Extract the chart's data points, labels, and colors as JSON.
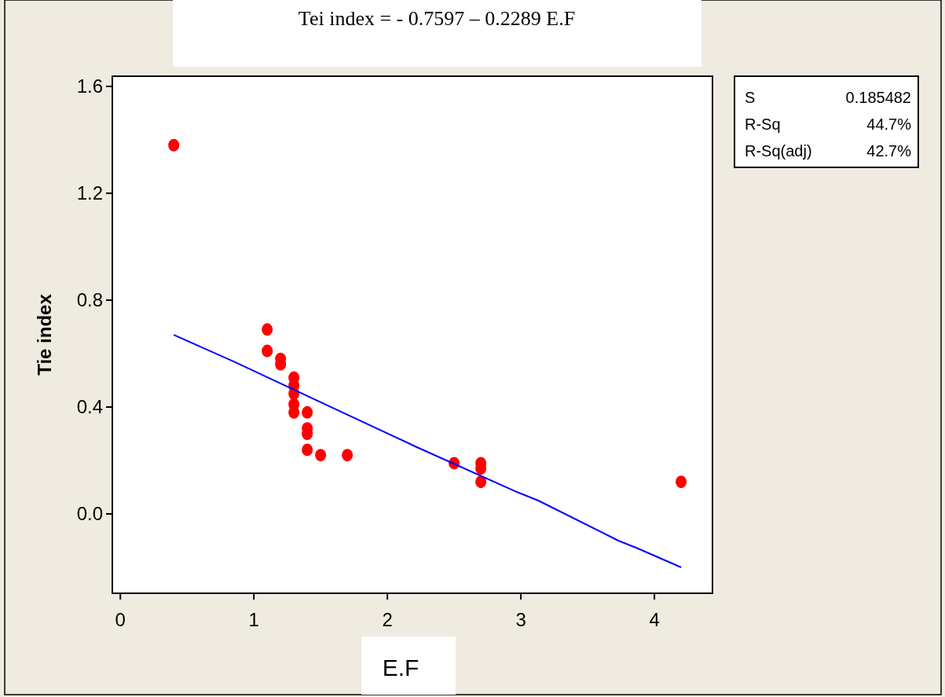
{
  "chart_data": {
    "type": "scatter",
    "title": "Tei index = - 0.7597 – 0.2289 E.F",
    "xlabel": "E.F",
    "ylabel": "Tie index",
    "xlim": [
      -0.06,
      4.435
    ],
    "ylim": [
      -0.297,
      1.638
    ],
    "xticks": [
      0,
      1,
      2,
      3,
      4
    ],
    "yticks": [
      {
        "value": 0,
        "label": "0.0"
      },
      0.4,
      0.8,
      1.2,
      1.6
    ],
    "grid": false,
    "series": [
      {
        "type": "scatter",
        "color": "#ff0000",
        "marker": "circle",
        "x": [
          0.4,
          1.1,
          1.1,
          1.2,
          1.2,
          1.3,
          1.3,
          1.3,
          1.3,
          1.3,
          1.4,
          1.4,
          1.4,
          1.4,
          1.5,
          1.7,
          2.5,
          2.7,
          2.7,
          2.7,
          4.2
        ],
        "values": [
          1.38,
          0.69,
          0.61,
          0.58,
          0.56,
          0.51,
          0.48,
          0.45,
          0.41,
          0.38,
          0.38,
          0.32,
          0.3,
          0.24,
          0.22,
          0.22,
          0.19,
          0.19,
          0.17,
          0.12,
          0.12
        ]
      },
      {
        "type": "line",
        "color": "#0000ff",
        "marker": "none",
        "line_style": "solid",
        "x": [
          0.4,
          0.85,
          1.62,
          2.22,
          2.98,
          3.13,
          3.73,
          3.88,
          4.2
        ],
        "values": [
          0.67,
          0.57,
          0.39,
          0.25,
          0.08,
          0.05,
          -0.1,
          -0.13,
          -0.2
        ]
      }
    ],
    "annotations": [
      "S",
      "0.185482",
      "R-Sq",
      "44.7%",
      "R-Sq(adj)",
      "42.7%"
    ]
  }
}
